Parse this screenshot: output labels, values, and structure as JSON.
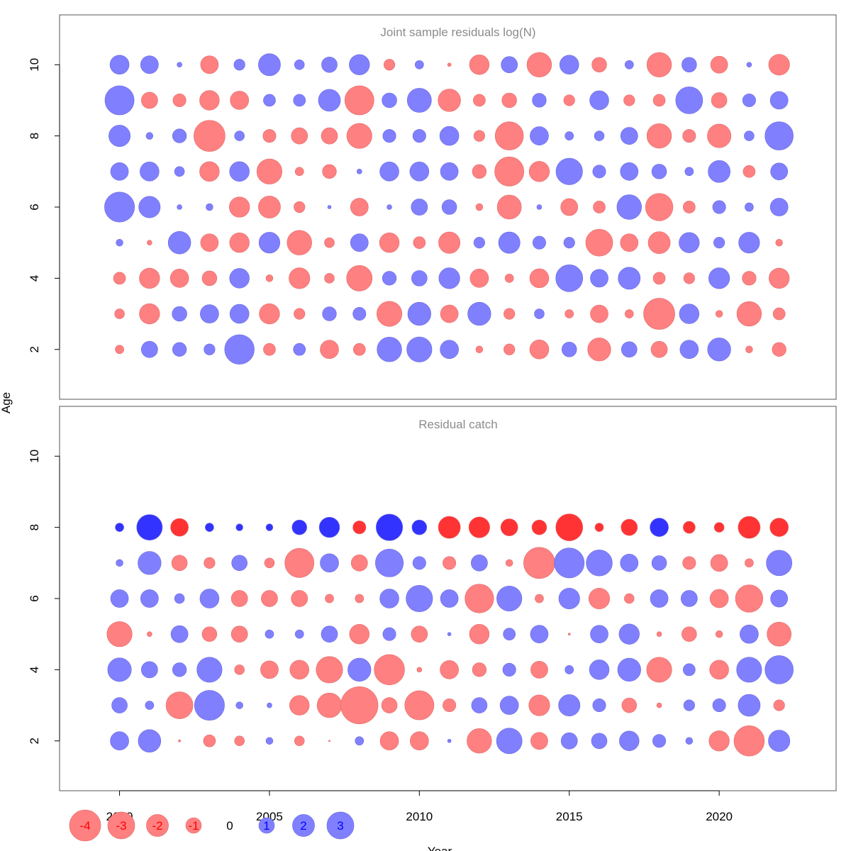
{
  "chart_data": [
    {
      "type": "bubble",
      "title": "Joint sample residuals log(N)",
      "ylabel": "Age",
      "xlim": [
        1998,
        2023.9
      ],
      "ylim": [
        0.6,
        11.4
      ],
      "years": [
        2000,
        2001,
        2002,
        2003,
        2004,
        2005,
        2006,
        2007,
        2008,
        2009,
        2010,
        2011,
        2012,
        2013,
        2014,
        2015,
        2016,
        2017,
        2018,
        2019,
        2020,
        2021,
        2022
      ],
      "ages": [
        2,
        3,
        4,
        5,
        6,
        7,
        8,
        9,
        10
      ],
      "y_ticks": [
        2,
        4,
        6,
        8,
        10
      ],
      "colors": {
        "positive": "#8080ff",
        "negative": "#ff8080"
      },
      "residuals": {
        "10": [
          1.5,
          1.3,
          0.1,
          -1.3,
          0.5,
          2.0,
          0.4,
          1.0,
          1.7,
          -0.5,
          0.3,
          -0.05,
          -1.6,
          1.1,
          -2.5,
          1.5,
          -0.9,
          0.3,
          -2.5,
          0.9,
          -1.2,
          0.1,
          -1.8
        ],
        "9": [
          3.5,
          -1.1,
          -0.7,
          -1.6,
          -1.4,
          0.6,
          0.6,
          2.0,
          -3.5,
          0.9,
          2.4,
          -2.1,
          -0.6,
          -0.9,
          0.8,
          -0.5,
          1.5,
          -0.5,
          -0.6,
          3.0,
          -1.0,
          0.7,
          1.3
        ],
        "8": [
          1.9,
          0.2,
          0.8,
          -4.0,
          0.4,
          -0.7,
          -1.1,
          -1.1,
          -2.6,
          0.7,
          0.7,
          1.5,
          -0.5,
          -3.3,
          1.4,
          0.3,
          0.4,
          1.2,
          -2.5,
          -0.7,
          -2.3,
          0.4,
          3.3
        ],
        "7": [
          1.3,
          1.5,
          0.4,
          -1.6,
          1.6,
          -2.6,
          -0.3,
          -0.8,
          0.1,
          1.5,
          1.5,
          1.3,
          -0.8,
          -3.5,
          -1.7,
          2.9,
          0.7,
          1.3,
          0.9,
          0.3,
          2.0,
          -0.6,
          1.2
        ],
        "6": [
          3.7,
          1.9,
          0.1,
          0.2,
          -1.7,
          -2.0,
          -0.5,
          0.05,
          -1.3,
          0.1,
          1.1,
          0.9,
          -0.2,
          -2.4,
          0.1,
          -1.2,
          -0.6,
          2.5,
          -3.1,
          -0.6,
          0.7,
          0.3,
          1.3
        ],
        "5": [
          0.2,
          -0.1,
          2.1,
          -1.3,
          -1.6,
          1.8,
          -2.5,
          -0.4,
          1.3,
          -1.6,
          -0.6,
          -1.9,
          0.5,
          1.9,
          0.7,
          0.5,
          -3.0,
          -1.3,
          -2.0,
          1.7,
          0.5,
          1.8,
          -0.2
        ],
        "4": [
          -0.6,
          -1.7,
          -1.4,
          -0.9,
          1.6,
          -0.2,
          -1.8,
          -0.4,
          -2.7,
          0.8,
          1.0,
          1.8,
          -1.4,
          -0.3,
          -1.5,
          3.0,
          1.3,
          2.0,
          -0.6,
          -0.5,
          1.8,
          -0.8,
          -1.7
        ],
        "3": [
          -0.4,
          -1.7,
          0.9,
          1.4,
          1.5,
          -1.7,
          -0.5,
          0.8,
          0.7,
          -2.6,
          2.2,
          -1.3,
          2.2,
          -0.5,
          0.4,
          -0.3,
          -1.3,
          -0.3,
          -4.0,
          1.6,
          -0.2,
          -2.5,
          -0.6
        ],
        "2": [
          -0.3,
          1.1,
          0.8,
          0.5,
          3.6,
          -0.6,
          0.6,
          -1.4,
          -0.6,
          2.5,
          2.6,
          1.4,
          -0.2,
          -0.5,
          -1.5,
          0.9,
          -2.2,
          1.0,
          -1.1,
          1.4,
          2.2,
          -0.2,
          -0.8
        ]
      }
    },
    {
      "type": "bubble",
      "title": "Residual catch",
      "ylabel": "Age",
      "xlabel": "Year",
      "xlim": [
        1998,
        2023.9
      ],
      "ylim": [
        0.6,
        11.4
      ],
      "years": [
        2000,
        2001,
        2002,
        2003,
        2004,
        2005,
        2006,
        2007,
        2008,
        2009,
        2010,
        2011,
        2012,
        2013,
        2014,
        2015,
        2016,
        2017,
        2018,
        2019,
        2020,
        2021,
        2022
      ],
      "ages": [
        2,
        3,
        4,
        5,
        6,
        7,
        8
      ],
      "x_ticks": [
        2000,
        2005,
        2010,
        2015,
        2020
      ],
      "y_ticks": [
        2,
        4,
        6,
        8,
        10
      ],
      "colors": {
        "positive": "#8080ff",
        "negative": "#ff8080",
        "positive_plus_group": "#3333ff",
        "negative_plus_group": "#ff3333"
      },
      "residuals": {
        "8": [
          0.3,
          2.7,
          -1.3,
          0.3,
          0.2,
          0.2,
          0.9,
          1.7,
          -0.7,
          2.9,
          0.9,
          -2.0,
          -1.8,
          -1.2,
          -0.9,
          -3.0,
          -0.3,
          -1.1,
          1.4,
          -0.6,
          -0.4,
          -2.0,
          -1.4
        ],
        "7": [
          0.2,
          2.2,
          -1.0,
          -0.5,
          1.0,
          -0.4,
          -3.5,
          1.4,
          -1.1,
          3.2,
          0.7,
          -0.7,
          1.1,
          -0.2,
          -4.0,
          3.7,
          2.8,
          1.3,
          0.9,
          -0.7,
          -1.2,
          -0.3,
          2.7
        ],
        "6": [
          1.3,
          1.3,
          0.4,
          1.5,
          -1.1,
          -1.1,
          -1.1,
          -0.3,
          -0.3,
          1.5,
          2.9,
          1.3,
          -3.4,
          2.6,
          -0.3,
          1.8,
          -1.8,
          -0.4,
          1.3,
          1.1,
          -1.4,
          -3.1,
          1.2
        ],
        "5": [
          -2.6,
          -0.1,
          1.2,
          -0.9,
          -1.1,
          0.3,
          0.3,
          1.1,
          -1.6,
          0.7,
          -1.1,
          0.05,
          -1.6,
          0.6,
          1.3,
          -0.02,
          1.3,
          1.7,
          -0.1,
          -0.9,
          -0.2,
          1.4,
          -2.4
        ],
        "4": [
          2.3,
          1.1,
          0.8,
          2.6,
          -0.4,
          -1.3,
          -1.5,
          -2.9,
          2.2,
          -3.8,
          -0.1,
          -1.4,
          -0.8,
          0.7,
          -1.2,
          0.3,
          1.6,
          2.2,
          -2.6,
          0.6,
          -1.5,
          2.6,
          3.3
        ],
        "3": [
          1.0,
          0.3,
          -3.0,
          3.7,
          0.2,
          0.1,
          -1.6,
          -2.5,
          -5.7,
          -1.0,
          -3.5,
          -0.7,
          1.0,
          1.4,
          -1.8,
          1.9,
          0.7,
          -0.9,
          -0.1,
          0.5,
          0.7,
          2.0,
          -0.5
        ],
        "2": [
          1.4,
          2.1,
          -0.02,
          -0.6,
          -0.4,
          0.2,
          -0.4,
          -0.01,
          0.3,
          -1.4,
          -1.4,
          0.05,
          -2.5,
          2.7,
          -1.2,
          1.1,
          1.0,
          1.6,
          0.7,
          0.2,
          -1.7,
          -3.8,
          1.9
        ]
      }
    }
  ],
  "legend": {
    "values": [
      -4,
      -3,
      -2,
      -1,
      0,
      1,
      2,
      3
    ],
    "labels": [
      "-4",
      "-3",
      "-2",
      "-1",
      "0",
      "1",
      "2",
      "3"
    ],
    "label_colors": {
      "negative": "#ff0000",
      "zero": "#000000",
      "positive": "#0000ff"
    }
  },
  "shared_labels": {
    "ylabel": "Age",
    "xlabel": "Year"
  }
}
